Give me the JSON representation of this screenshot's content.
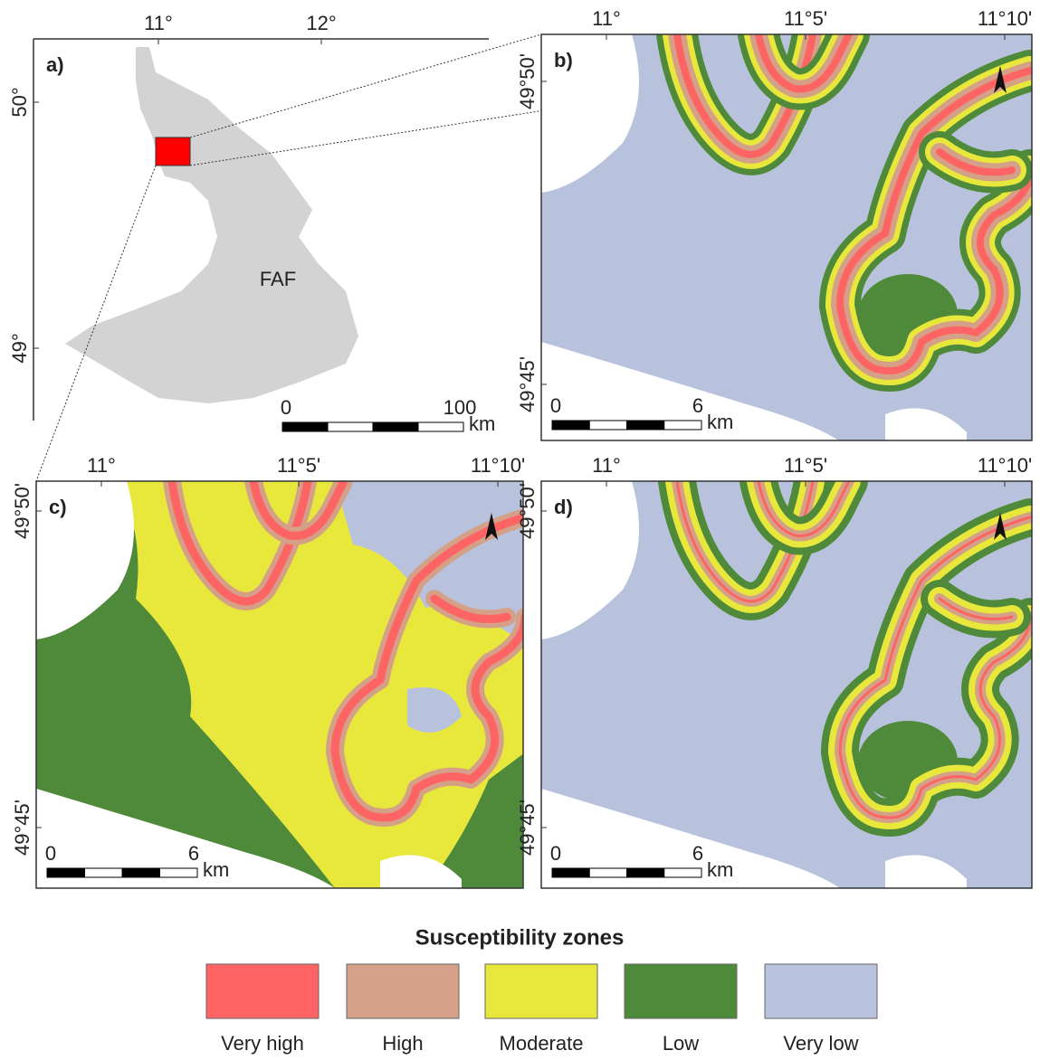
{
  "panels": [
    {
      "label": "a)",
      "x_ticks": [
        "11°",
        "12°"
      ],
      "y_ticks": [
        "50°",
        "49°"
      ],
      "region": "FAF",
      "scale": {
        "labels": [
          "0",
          "100"
        ],
        "unit": "km"
      }
    },
    {
      "label": "b)",
      "x_ticks": [
        "11°",
        "11°5'",
        "11°10'"
      ],
      "y_ticks": [
        "49°50'",
        "49°45'"
      ],
      "scale": {
        "labels": [
          "0",
          "6"
        ],
        "unit": "km"
      }
    },
    {
      "label": "c)",
      "x_ticks": [
        "11°",
        "11°5'",
        "11°10'"
      ],
      "y_ticks": [
        "49°50'",
        "49°45'"
      ],
      "scale": {
        "labels": [
          "0",
          "6"
        ],
        "unit": "km"
      }
    },
    {
      "label": "d)",
      "x_ticks": [
        "11°",
        "11°5'",
        "11°10'"
      ],
      "y_ticks": [
        "49°50'",
        "49°45'"
      ],
      "scale": {
        "labels": [
          "0",
          "6"
        ],
        "unit": "km"
      }
    }
  ],
  "legend": {
    "title": "Susceptibility zones",
    "items": [
      {
        "name": "Very high",
        "color": "#ff6464"
      },
      {
        "name": "High",
        "color": "#d4a088"
      },
      {
        "name": "Moderate",
        "color": "#e8e83c"
      },
      {
        "name": "Low",
        "color": "#4f8a3a"
      },
      {
        "name": "Very low",
        "color": "#b8c2dc"
      }
    ]
  }
}
